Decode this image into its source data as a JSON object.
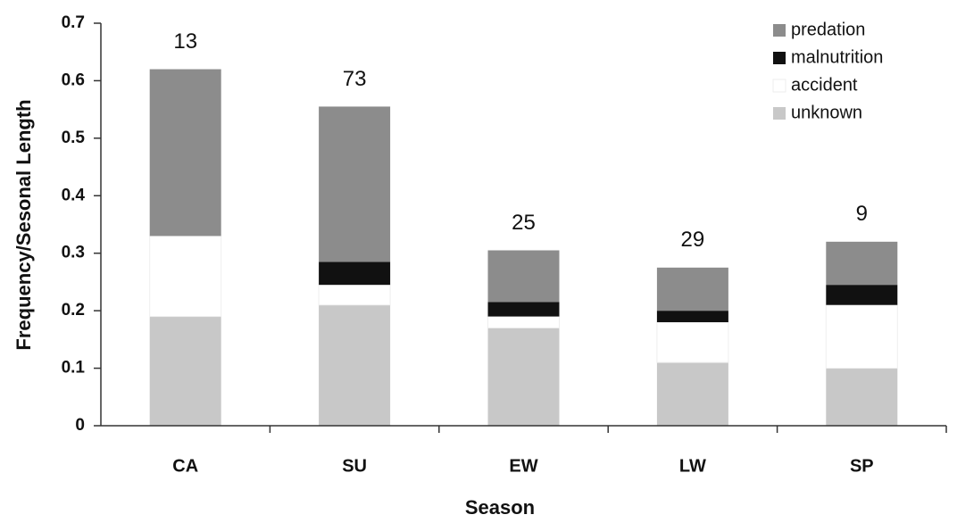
{
  "chart_data": {
    "type": "stacked-bar",
    "xlabel": "Season",
    "ylabel": "Frequency/Sesonal Length",
    "categories": [
      "CA",
      "SU",
      "EW",
      "LW",
      "SP"
    ],
    "series": [
      {
        "name": "unknown",
        "color": "#c8c8c8",
        "values": [
          0.19,
          0.21,
          0.17,
          0.11,
          0.1
        ]
      },
      {
        "name": "accident",
        "color": "#ffffff",
        "values": [
          0.14,
          0.035,
          0.02,
          0.07,
          0.11
        ]
      },
      {
        "name": "malnutrition",
        "color": "#111111",
        "values": [
          0,
          0.04,
          0.025,
          0.02,
          0.035
        ]
      },
      {
        "name": "predation",
        "color": "#8c8c8c",
        "values": [
          0.29,
          0.27,
          0.09,
          0.075,
          0.075
        ]
      }
    ],
    "sample_sizes": [
      13,
      73,
      25,
      29,
      9
    ],
    "ylim": [
      0,
      0.7
    ],
    "yticks": [
      0,
      0.1,
      0.2,
      0.3,
      0.4,
      0.5,
      0.6,
      0.7
    ],
    "grid": false,
    "legend": "top-right"
  }
}
